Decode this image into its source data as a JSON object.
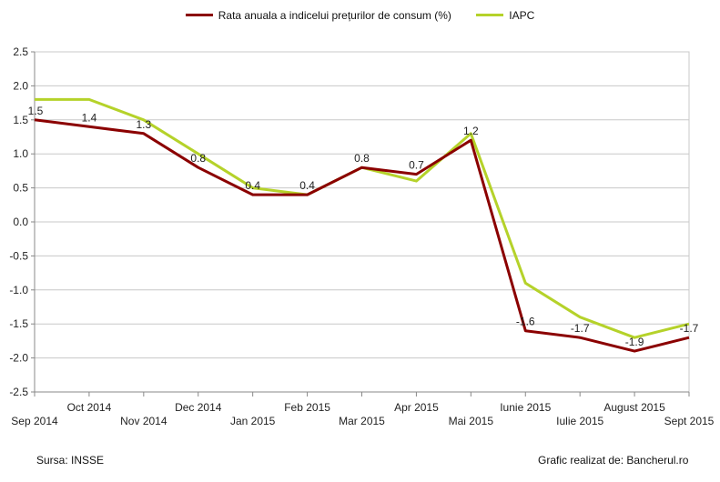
{
  "colors": {
    "series1": "#8b0000",
    "series2": "#b5d22a",
    "grid": "#c8c8c8",
    "axis": "#888888"
  },
  "legend": {
    "series1_label": "Rata anuala a indicelui prețurilor de consum (%)",
    "series2_label": "IAPC"
  },
  "footer": {
    "source": "Sursa: INSSE",
    "credit": "Grafic realizat de: Bancherul.ro"
  },
  "chart_data": {
    "type": "line",
    "categories": [
      "Sep 2014",
      "Oct 2014",
      "Nov 2014",
      "Dec 2014",
      "Jan 2015",
      "Feb 2015",
      "Mar 2015",
      "Apr 2015",
      "Mai 2015",
      "Iunie 2015",
      "Iulie 2015",
      "August 2015",
      "Sept 2015"
    ],
    "series": [
      {
        "name": "Rata anuala a indicelui prețurilor de consum (%)",
        "color": "#8b0000",
        "values": [
          1.5,
          1.4,
          1.3,
          0.8,
          0.4,
          0.4,
          0.8,
          0.7,
          1.2,
          -1.6,
          -1.7,
          -1.9,
          -1.7
        ],
        "data_labels": [
          "1.5",
          "1.4",
          "1.3",
          "0.8",
          "0.4",
          "0.4",
          "0.8",
          "0.7",
          "1.2",
          "-1.6",
          "-1.7",
          "-1.9",
          "-1.7"
        ]
      },
      {
        "name": "IAPC",
        "color": "#b5d22a",
        "values": [
          1.8,
          1.8,
          1.5,
          1.0,
          0.5,
          0.4,
          0.8,
          0.6,
          1.3,
          -0.9,
          -1.4,
          -1.7,
          -1.5
        ]
      }
    ],
    "yticks": [
      "2.5",
      "2.0",
      "1.5",
      "1.0",
      "0.5",
      "0.0",
      "-0.5",
      "-1.0",
      "-1.5",
      "-2.0",
      "-2.5"
    ],
    "ylim": [
      -2.5,
      2.5
    ],
    "grid": "horizontal",
    "legend_position": "top"
  }
}
